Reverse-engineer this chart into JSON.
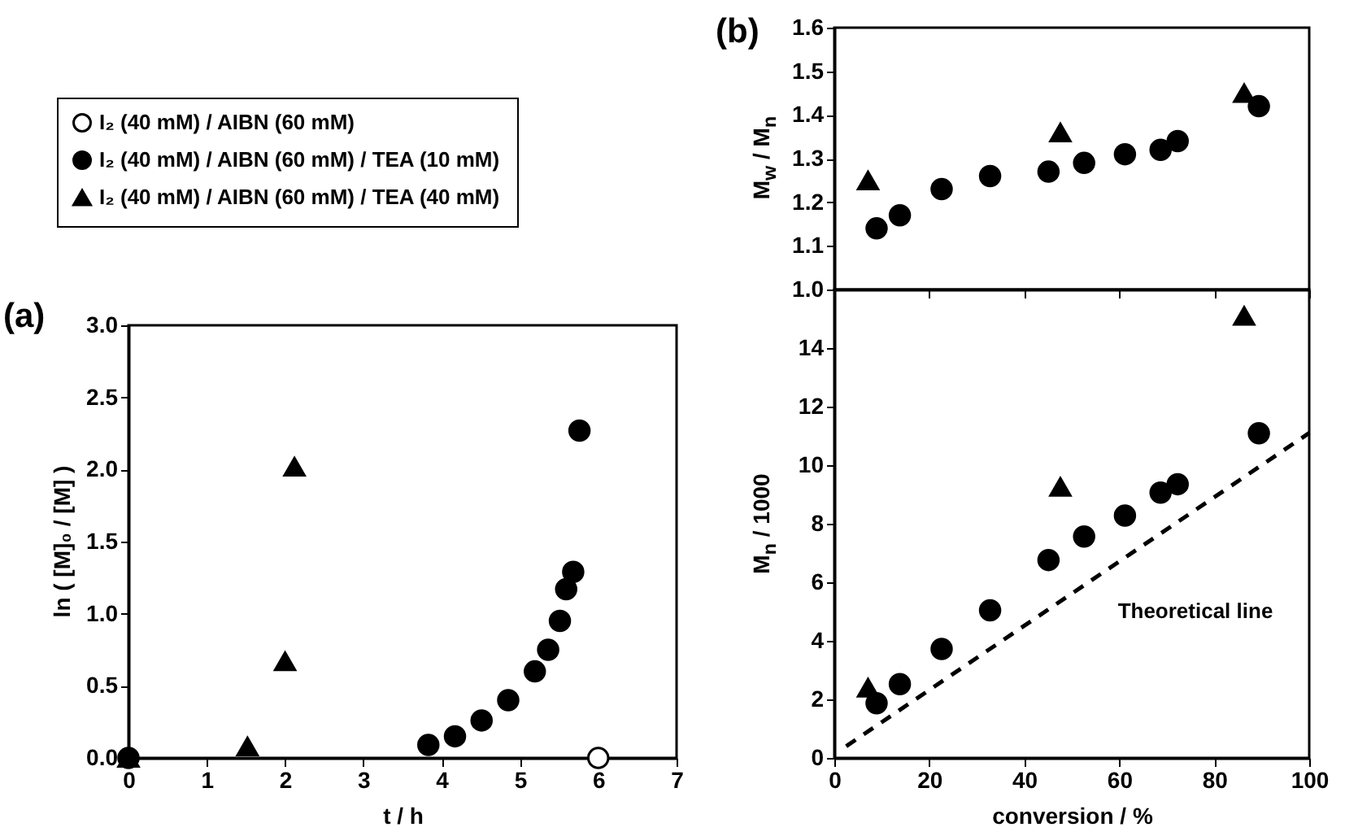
{
  "chart_data": [
    {
      "type": "scatter",
      "title": "(a)",
      "xlabel": "t / h",
      "ylabel": "ln ( [M]₀ / [M] )",
      "xlim": [
        0,
        7
      ],
      "xticks": [
        0,
        1,
        2,
        3,
        4,
        5,
        6,
        7
      ],
      "ylim": [
        0,
        3
      ],
      "yticks": [
        {
          "value": 0,
          "label": "0.0"
        },
        0.5,
        {
          "value": 1,
          "label": "1.0"
        },
        1.5,
        {
          "value": 2,
          "label": "2.0"
        },
        2.5,
        {
          "value": 3,
          "label": "3.0"
        }
      ],
      "legend": "top",
      "series": [
        {
          "name": "I₂ (40 mM) / AIBN (60 mM)",
          "color": "#ffffff",
          "marker": "circle",
          "x": [
            6
          ],
          "values": [
            0
          ]
        },
        {
          "name": "I₂ (40 mM) / AIBN (60 mM) / TEA (10 mM)",
          "color": "#000000",
          "marker": "circle",
          "x": [
            0,
            3.83,
            4.17,
            4.51,
            4.85,
            5.19,
            5.36,
            5.51,
            5.59,
            5.68,
            5.76
          ],
          "values": [
            0,
            0.09,
            0.15,
            0.26,
            0.4,
            0.6,
            0.75,
            0.95,
            1.17,
            1.29,
            2.27
          ]
        },
        {
          "name": "I₂ (40 mM) / AIBN (60 mM) / TEA (40 mM)",
          "color": "#000000",
          "marker": "triangle",
          "x": [
            0,
            1.52,
            2,
            2.12
          ],
          "values": [
            0,
            0.08,
            0.67,
            2.02
          ]
        }
      ]
    },
    {
      "type": "scatter",
      "title": "(b)",
      "ylabel": "M$_{w}$ / M$_{n}$",
      "xlim": [
        0,
        100
      ],
      "xticks": [
        0,
        20,
        40,
        60,
        80,
        100
      ],
      "ylim": [
        1,
        1.6
      ],
      "yticks": [
        {
          "value": 1,
          "label": "1.0"
        },
        1.1,
        1.2,
        1.3,
        1.4,
        1.5,
        1.6
      ],
      "tick_labels": "y",
      "series": [
        {
          "color": "#000000",
          "marker": "circle",
          "x": [
            8.9,
            13.8,
            22.6,
            32.8,
            45.1,
            52.6,
            61.2,
            68.7,
            72.3,
            89.4
          ],
          "values": [
            1.14,
            1.17,
            1.23,
            1.26,
            1.27,
            1.29,
            1.31,
            1.32,
            1.34,
            1.42
          ]
        },
        {
          "color": "#000000",
          "marker": "triangle",
          "x": [
            7.1,
            47.6,
            86.3
          ],
          "values": [
            1.25,
            1.36,
            1.45
          ]
        }
      ]
    },
    {
      "type": "scatter",
      "xlabel": "conversion / %",
      "ylabel": "M$_{n}$ / 1000",
      "xlim": [
        0,
        100
      ],
      "xticks": [
        0,
        20,
        40,
        60,
        80,
        100
      ],
      "ylim": [
        0,
        16
      ],
      "yticks": [
        0,
        2,
        4,
        6,
        8,
        10,
        12,
        14
      ],
      "series": [
        {
          "color": "#000000",
          "marker": "circle",
          "x": [
            8.9,
            13.8,
            22.6,
            32.8,
            45.1,
            52.6,
            61.2,
            68.7,
            72.3,
            89.4
          ],
          "values": [
            1.87,
            2.52,
            3.72,
            5.04,
            6.76,
            7.56,
            8.28,
            9.06,
            9.35,
            11.09
          ]
        },
        {
          "color": "#000000",
          "marker": "triangle",
          "x": [
            7.1,
            47.6,
            86.3
          ],
          "values": [
            2.4,
            9.26,
            15.1
          ]
        },
        {
          "type": "line",
          "name": "Theoretical line",
          "color": "#000000",
          "line_style": "dashed",
          "x": [
            2.5,
            100
          ],
          "values": [
            0.4,
            11.1
          ]
        }
      ]
    }
  ]
}
